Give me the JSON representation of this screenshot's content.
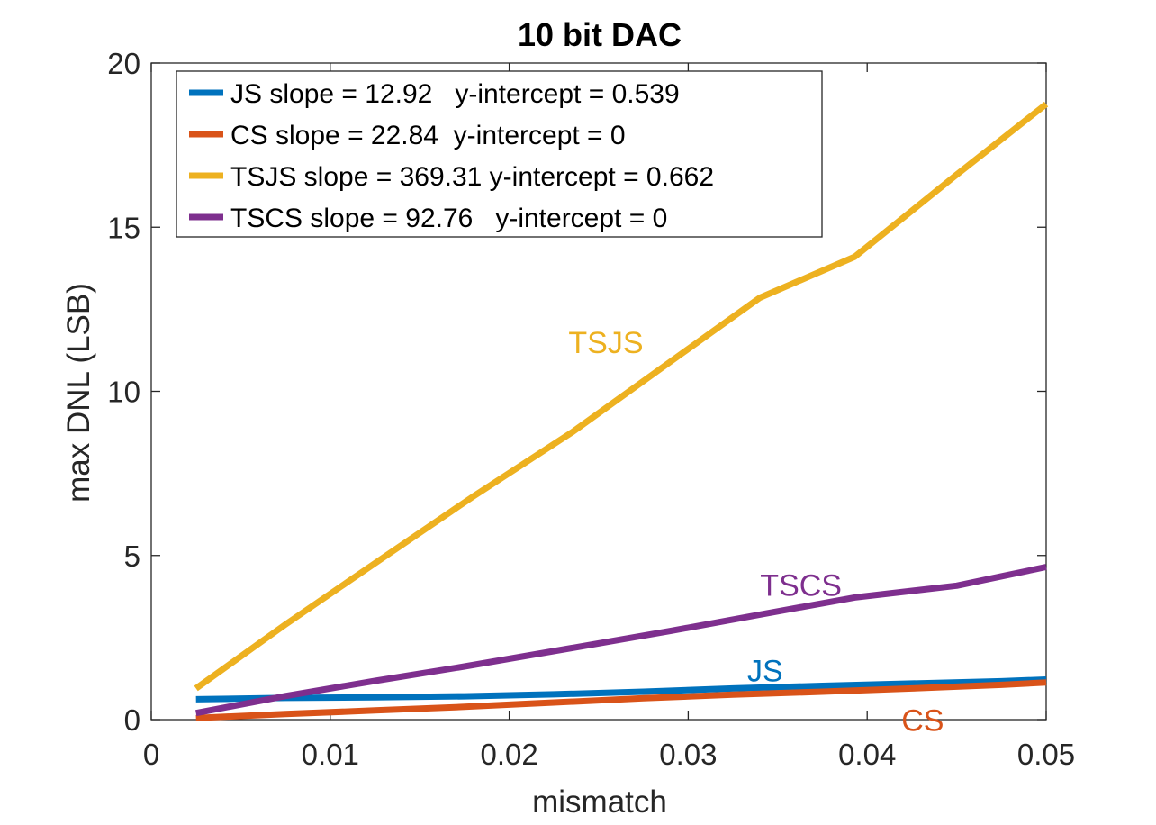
{
  "chart_data": {
    "type": "line",
    "title": "10 bit DAC",
    "xlabel": "mismatch",
    "ylabel": "max DNL (LSB)",
    "xlim": [
      0,
      0.05
    ],
    "ylim": [
      0,
      20
    ],
    "xticks": [
      "0",
      "0.01",
      "0.02",
      "0.03",
      "0.04",
      "0.05"
    ],
    "yticks": [
      "0",
      "5",
      "10",
      "15",
      "20"
    ],
    "grid": false,
    "legend_placement": "top-left",
    "series": [
      {
        "name": "JS slope = 12.92   y-intercept = 0.539",
        "short_label": "JS",
        "color": "#0072BD",
        "x": [
          0.0025,
          0.0075,
          0.0125,
          0.0175,
          0.0225,
          0.0275,
          0.0325,
          0.0375,
          0.0425,
          0.0475,
          0.05
        ],
        "y": [
          0.62,
          0.66,
          0.68,
          0.71,
          0.77,
          0.85,
          0.95,
          1.03,
          1.1,
          1.17,
          1.22
        ]
      },
      {
        "name": "CS slope = 22.84  y-intercept = 0",
        "short_label": "CS",
        "color": "#D95319",
        "x": [
          0.0025,
          0.0075,
          0.0125,
          0.0175,
          0.0225,
          0.0275,
          0.0325,
          0.0375,
          0.0425,
          0.0475,
          0.05
        ],
        "y": [
          0.05,
          0.17,
          0.28,
          0.39,
          0.52,
          0.65,
          0.76,
          0.85,
          0.95,
          1.06,
          1.13
        ]
      },
      {
        "name": "TSJS slope = 369.31 y-intercept = 0.662",
        "short_label": "TSJS",
        "color": "#EDB120",
        "x": [
          0.0025,
          0.0075,
          0.013,
          0.018,
          0.0235,
          0.029,
          0.034,
          0.0393,
          0.045,
          0.05
        ],
        "y": [
          0.95,
          2.9,
          4.95,
          6.8,
          8.75,
          10.9,
          12.85,
          14.1,
          16.6,
          18.75
        ]
      },
      {
        "name": "TSCS slope = 92.76   y-intercept = 0",
        "short_label": "TSCS",
        "color": "#7E2F8E",
        "x": [
          0.0025,
          0.0075,
          0.0125,
          0.0175,
          0.0235,
          0.029,
          0.034,
          0.0393,
          0.045,
          0.05
        ],
        "y": [
          0.2,
          0.72,
          1.18,
          1.62,
          2.18,
          2.7,
          3.2,
          3.72,
          4.08,
          4.65
        ]
      }
    ],
    "annotations": [
      {
        "text": "TSJS",
        "x": 0.0254,
        "y": 11.5,
        "color": "#EDB120"
      },
      {
        "text": "TSCS",
        "x": 0.0363,
        "y": 4.1,
        "color": "#7E2F8E"
      },
      {
        "text": "JS",
        "x": 0.0343,
        "y": 1.5,
        "color": "#0072BD"
      },
      {
        "text": "CS",
        "x": 0.0431,
        "y": -0.02,
        "color": "#D95319"
      }
    ]
  }
}
